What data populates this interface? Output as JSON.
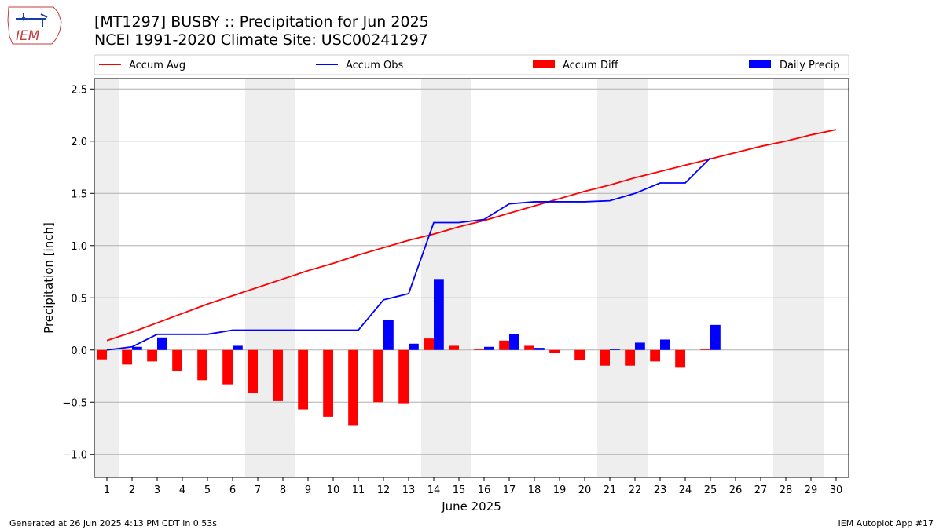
{
  "header": {
    "title_line_1": "[MT1297] BUSBY :: Precipitation for Jun 2025",
    "title_line_2": "NCEI 1991-2020 Climate Site: USC00241297"
  },
  "logo": {
    "text": "IEM"
  },
  "footer": {
    "generated": "Generated at 26 Jun 2025 4:13 PM CDT in 0.53s",
    "app": "IEM Autoplot App #17"
  },
  "colors": {
    "avg": "#ff0000",
    "obs": "#0000ff",
    "diff": "#ff0000",
    "daily": "#0000ff",
    "weekend": "#eeeeee",
    "grid": "#b0b0b0"
  },
  "chart_data": {
    "type": "bar",
    "xlabel": "June 2025",
    "ylabel": "Precipitation [inch]",
    "xlim": [
      0.5,
      30.5
    ],
    "ylim": [
      -1.22,
      2.6
    ],
    "xticks": [
      1,
      2,
      3,
      4,
      5,
      6,
      7,
      8,
      9,
      10,
      11,
      12,
      13,
      14,
      15,
      16,
      17,
      18,
      19,
      20,
      21,
      22,
      23,
      24,
      25,
      26,
      27,
      28,
      29,
      30
    ],
    "yticks": [
      -1.0,
      -0.5,
      0.0,
      0.5,
      1.0,
      1.5,
      2.0,
      2.5
    ],
    "ytick_labels": [
      "−1.0",
      "−0.5",
      "0.0",
      "0.5",
      "1.0",
      "1.5",
      "2.0",
      "2.5"
    ],
    "grid": "horizontal",
    "legend_position": "top",
    "weekend_shading": [
      [
        0.5,
        1.5
      ],
      [
        6.5,
        8.5
      ],
      [
        13.5,
        15.5
      ],
      [
        20.5,
        22.5
      ],
      [
        27.5,
        29.5
      ]
    ],
    "series": [
      {
        "name": "Accum Avg",
        "kind": "line",
        "color": "#ff0000",
        "x": [
          1,
          2,
          3,
          4,
          5,
          6,
          7,
          8,
          9,
          10,
          11,
          12,
          13,
          14,
          15,
          16,
          17,
          18,
          19,
          20,
          21,
          22,
          23,
          24,
          25,
          26,
          27,
          28,
          29,
          30
        ],
        "values": [
          0.09,
          0.17,
          0.26,
          0.35,
          0.44,
          0.52,
          0.6,
          0.68,
          0.76,
          0.83,
          0.91,
          0.98,
          1.05,
          1.11,
          1.18,
          1.24,
          1.31,
          1.38,
          1.45,
          1.52,
          1.58,
          1.65,
          1.71,
          1.77,
          1.83,
          1.89,
          1.95,
          2.0,
          2.06,
          2.11
        ]
      },
      {
        "name": "Accum Obs",
        "kind": "line",
        "color": "#0000ff",
        "x": [
          1,
          2,
          3,
          4,
          5,
          6,
          7,
          8,
          9,
          10,
          11,
          12,
          13,
          14,
          15,
          16,
          17,
          18,
          19,
          20,
          21,
          22,
          23,
          24,
          25
        ],
        "values": [
          0.0,
          0.03,
          0.15,
          0.15,
          0.15,
          0.19,
          0.19,
          0.19,
          0.19,
          0.19,
          0.19,
          0.48,
          0.54,
          1.22,
          1.22,
          1.25,
          1.4,
          1.42,
          1.42,
          1.42,
          1.43,
          1.5,
          1.6,
          1.6,
          1.84
        ]
      },
      {
        "name": "Accum Diff",
        "kind": "bar",
        "color": "#ff0000",
        "x": [
          1,
          2,
          3,
          4,
          5,
          6,
          7,
          8,
          9,
          10,
          11,
          12,
          13,
          14,
          15,
          16,
          17,
          18,
          19,
          20,
          21,
          22,
          23,
          24,
          25
        ],
        "values": [
          -0.09,
          -0.14,
          -0.11,
          -0.2,
          -0.29,
          -0.33,
          -0.41,
          -0.49,
          -0.57,
          -0.64,
          -0.72,
          -0.5,
          -0.51,
          0.11,
          0.04,
          0.01,
          0.09,
          0.04,
          -0.03,
          -0.1,
          -0.15,
          -0.15,
          -0.11,
          -0.17,
          0.01
        ]
      },
      {
        "name": "Daily Precip",
        "kind": "bar",
        "color": "#0000ff",
        "x": [
          1,
          2,
          3,
          4,
          5,
          6,
          7,
          8,
          9,
          10,
          11,
          12,
          13,
          14,
          15,
          16,
          17,
          18,
          19,
          20,
          21,
          22,
          23,
          24,
          25
        ],
        "values": [
          0.0,
          0.03,
          0.12,
          0.0,
          0.0,
          0.04,
          0.0,
          0.0,
          0.0,
          0.0,
          0.0,
          0.29,
          0.06,
          0.68,
          0.0,
          0.03,
          0.15,
          0.02,
          0.0,
          0.0,
          0.01,
          0.07,
          0.1,
          0.0,
          0.24
        ]
      }
    ]
  }
}
